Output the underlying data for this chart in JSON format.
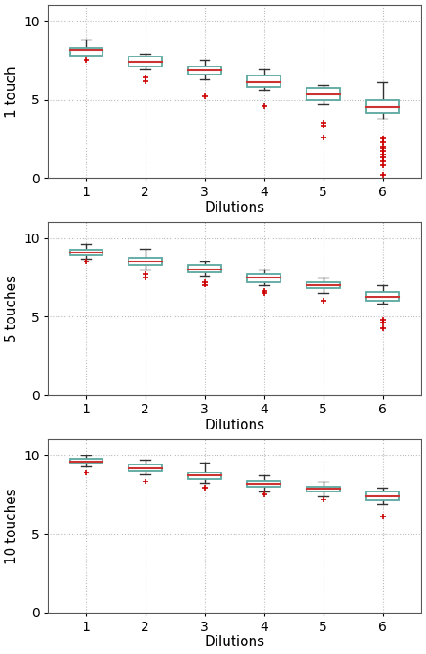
{
  "panels": [
    {
      "ylabel": "1 touch",
      "boxes": [
        {
          "q1": 7.8,
          "median": 8.1,
          "q3": 8.3,
          "whisker_low": 8.0,
          "whisker_high": 8.8,
          "outliers": [
            7.5
          ]
        },
        {
          "q1": 7.1,
          "median": 7.4,
          "q3": 7.7,
          "whisker_low": 6.9,
          "whisker_high": 7.9,
          "outliers": [
            6.4,
            6.2
          ]
        },
        {
          "q1": 6.6,
          "median": 6.85,
          "q3": 7.1,
          "whisker_low": 6.3,
          "whisker_high": 7.5,
          "outliers": [
            5.2
          ]
        },
        {
          "q1": 5.8,
          "median": 6.1,
          "q3": 6.5,
          "whisker_low": 5.6,
          "whisker_high": 6.9,
          "outliers": [
            4.6
          ]
        },
        {
          "q1": 5.0,
          "median": 5.3,
          "q3": 5.7,
          "whisker_low": 4.7,
          "whisker_high": 5.9,
          "outliers": [
            3.5,
            3.3,
            2.6
          ]
        },
        {
          "q1": 4.1,
          "median": 4.5,
          "q3": 5.0,
          "whisker_low": 3.8,
          "whisker_high": 6.1,
          "outliers": [
            2.5,
            2.3,
            2.0,
            1.9,
            1.7,
            1.5,
            1.3,
            1.1,
            0.8,
            0.2
          ]
        }
      ]
    },
    {
      "ylabel": "5 touches",
      "boxes": [
        {
          "q1": 8.9,
          "median": 9.1,
          "q3": 9.25,
          "whisker_low": 8.7,
          "whisker_high": 9.6,
          "outliers": [
            8.5
          ]
        },
        {
          "q1": 8.3,
          "median": 8.5,
          "q3": 8.75,
          "whisker_low": 8.0,
          "whisker_high": 9.3,
          "outliers": [
            7.7,
            7.5
          ]
        },
        {
          "q1": 7.8,
          "median": 8.0,
          "q3": 8.25,
          "whisker_low": 7.6,
          "whisker_high": 8.5,
          "outliers": [
            7.2,
            7.0
          ]
        },
        {
          "q1": 7.2,
          "median": 7.45,
          "q3": 7.7,
          "whisker_low": 7.0,
          "whisker_high": 8.0,
          "outliers": [
            6.6,
            6.5
          ]
        },
        {
          "q1": 6.8,
          "median": 7.0,
          "q3": 7.2,
          "whisker_low": 6.5,
          "whisker_high": 7.5,
          "outliers": [
            6.0
          ]
        },
        {
          "q1": 6.0,
          "median": 6.2,
          "q3": 6.55,
          "whisker_low": 5.8,
          "whisker_high": 7.0,
          "outliers": [
            4.8,
            4.6,
            4.3
          ]
        }
      ]
    },
    {
      "ylabel": "10 touches",
      "boxes": [
        {
          "q1": 9.5,
          "median": 9.6,
          "q3": 9.75,
          "whisker_low": 9.3,
          "whisker_high": 10.0,
          "outliers": [
            8.9
          ]
        },
        {
          "q1": 9.0,
          "median": 9.15,
          "q3": 9.4,
          "whisker_low": 8.8,
          "whisker_high": 9.7,
          "outliers": [
            8.3
          ]
        },
        {
          "q1": 8.5,
          "median": 8.7,
          "q3": 8.9,
          "whisker_low": 8.2,
          "whisker_high": 9.5,
          "outliers": [
            7.9
          ]
        },
        {
          "q1": 8.0,
          "median": 8.15,
          "q3": 8.4,
          "whisker_low": 7.7,
          "whisker_high": 8.7,
          "outliers": [
            7.5
          ]
        },
        {
          "q1": 7.7,
          "median": 7.85,
          "q3": 8.0,
          "whisker_low": 7.4,
          "whisker_high": 8.3,
          "outliers": [
            7.2
          ]
        },
        {
          "q1": 7.1,
          "median": 7.4,
          "q3": 7.7,
          "whisker_low": 6.9,
          "whisker_high": 7.9,
          "outliers": [
            6.1
          ]
        }
      ]
    }
  ],
  "box_color": "#5BA8A0",
  "median_color": "#CC3333",
  "whisker_color": "#333333",
  "outlier_color": "#CC0000",
  "xlabel": "Dilutions",
  "ylim": [
    0,
    11
  ],
  "yticks": [
    0,
    5,
    10
  ],
  "xticks": [
    1,
    2,
    3,
    4,
    5,
    6
  ],
  "box_width": 0.55,
  "figsize": [
    4.74,
    7.28
  ],
  "dpi": 100,
  "bg_color": "#FFFFFF"
}
